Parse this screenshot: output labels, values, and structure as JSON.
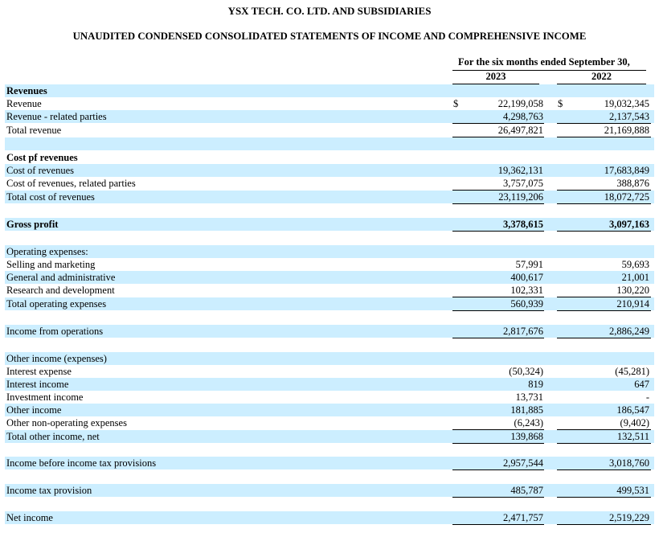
{
  "header": {
    "company": "YSX TECH. CO. LTD. AND SUBSIDIARIES",
    "statement": "UNAUDITED CONDENSED CONSOLIDATED STATEMENTS OF INCOME AND COMPREHENSIVE INCOME",
    "period": "For the six months ended September 30,",
    "year1": "2023",
    "year2": "2022",
    "currency_symbol": "$"
  },
  "rows": [
    {
      "label": "Revenues",
      "bold": true,
      "shaded": true
    },
    {
      "label": "Revenue",
      "v1": "22,199,058",
      "v2": "19,032,345",
      "dollar": true
    },
    {
      "label": "Revenue - related parties",
      "v1": "4,298,763",
      "v2": "2,137,543",
      "shaded": true,
      "underline": true
    },
    {
      "label": "Total revenue",
      "v1": "26,497,821",
      "v2": "21,169,888",
      "underline": true
    },
    {
      "label": "",
      "shaded": true
    },
    {
      "label": "Cost pf revenues",
      "bold": true
    },
    {
      "label": "Cost of revenues",
      "v1": "19,362,131",
      "v2": "17,683,849",
      "shaded": true
    },
    {
      "label": "Cost of revenues, related parties",
      "v1": "3,757,075",
      "v2": "388,876",
      "underline": true
    },
    {
      "label": "Total cost of revenues",
      "v1": "23,119,206",
      "v2": "18,072,725",
      "shaded": true,
      "underline": true
    },
    {
      "label": ""
    },
    {
      "label": "Gross profit",
      "bold": true,
      "bold_values": true,
      "v1": "3,378,615",
      "v2": "3,097,163",
      "shaded": true,
      "underline": true
    },
    {
      "label": ""
    },
    {
      "label": "Operating expenses:",
      "shaded": true
    },
    {
      "label": "Selling and marketing",
      "v1": "57,991",
      "v2": "59,693"
    },
    {
      "label": "General and administrative",
      "v1": "400,617",
      "v2": "21,001",
      "shaded": true
    },
    {
      "label": "Research and development",
      "v1": "102,331",
      "v2": "130,220",
      "underline": true
    },
    {
      "label": "Total operating expenses",
      "v1": "560,939",
      "v2": "210,914",
      "shaded": true,
      "underline": true
    },
    {
      "label": ""
    },
    {
      "label": "Income from operations",
      "v1": "2,817,676",
      "v2": "2,886,249",
      "shaded": true,
      "underline": true
    },
    {
      "label": ""
    },
    {
      "label": "Other income (expenses)",
      "shaded": true
    },
    {
      "label": "Interest expense",
      "v1": "(50,324)",
      "v2": "(45,281)"
    },
    {
      "label": "Interest income",
      "v1": "819",
      "v2": "647",
      "shaded": true
    },
    {
      "label": "Investment income",
      "v1": "13,731",
      "v2": "-"
    },
    {
      "label": "Other income",
      "v1": "181,885",
      "v2": "186,547",
      "shaded": true
    },
    {
      "label": "Other non-operating expenses",
      "v1": "(6,243)",
      "v2": "(9,402)",
      "underline": true
    },
    {
      "label": "Total other income, net",
      "v1": "139,868",
      "v2": "132,511",
      "shaded": true,
      "underline": true
    },
    {
      "label": ""
    },
    {
      "label": "Income before income tax provisions",
      "v1": "2,957,544",
      "v2": "3,018,760",
      "shaded": true,
      "underline": true
    },
    {
      "label": ""
    },
    {
      "label": "Income tax provision",
      "v1": "485,787",
      "v2": "499,531",
      "shaded": true,
      "underline": true
    },
    {
      "label": ""
    },
    {
      "label": "Net income",
      "v1": "2,471,757",
      "v2": "2,519,229",
      "shaded": true,
      "underline": true
    }
  ]
}
